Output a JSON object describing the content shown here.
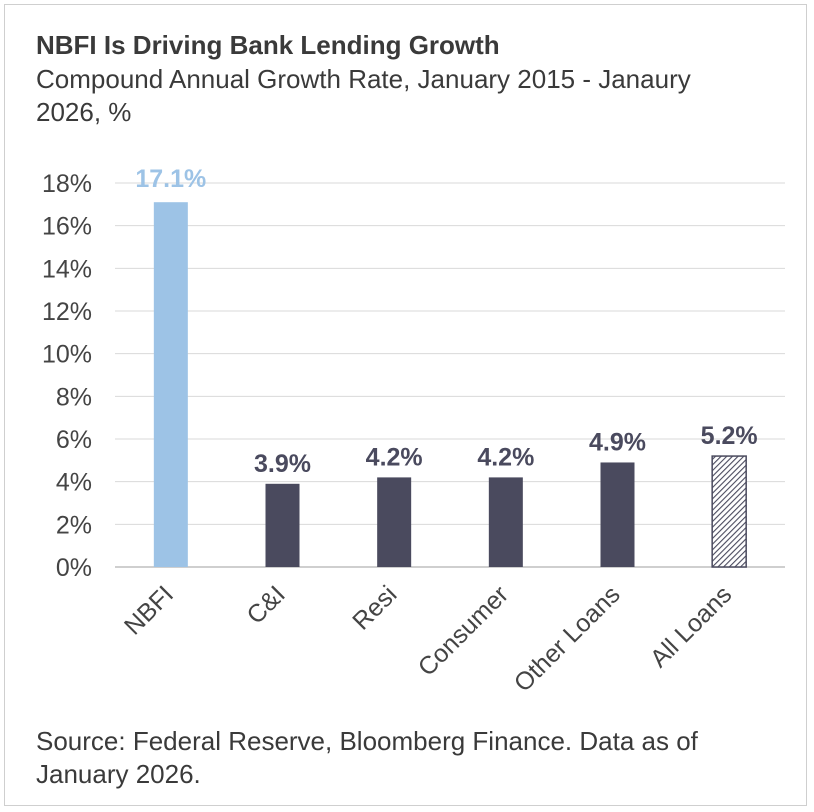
{
  "title": "NBFI Is Driving Bank Lending Growth",
  "subtitle": "Compound Annual Growth Rate, January 2015 - Janaury 2026, %",
  "source": "Source: Federal Reserve, Bloomberg Finance. Data as of January 2026.",
  "colors": {
    "highlight": "#9dc3e6",
    "primary": "#4a4a5e",
    "highlight_label": "#9dc3e6",
    "primary_label": "#4a4a5e",
    "gridline": "#d9d9d9",
    "axis": "#bfbfbf"
  },
  "chart_data": {
    "type": "bar",
    "title": "NBFI Is Driving Bank Lending Growth",
    "subtitle": "Compound Annual Growth Rate, January 2015 - Janaury 2026, %",
    "categories": [
      "NBFI",
      "C&I",
      "Resi",
      "Consumer",
      "Other Loans",
      "All Loans"
    ],
    "values": [
      17.1,
      3.9,
      4.2,
      4.2,
      4.9,
      5.2
    ],
    "data_labels": [
      "17.1%",
      "3.9%",
      "4.2%",
      "4.2%",
      "4.9%",
      "5.2%"
    ],
    "bar_styles": [
      "highlight",
      "solid",
      "solid",
      "solid",
      "solid",
      "hatched"
    ],
    "ylim": [
      0,
      18
    ],
    "yticks": [
      0,
      2,
      4,
      6,
      8,
      10,
      12,
      14,
      16,
      18
    ],
    "ytick_labels": [
      "0%",
      "2%",
      "4%",
      "6%",
      "8%",
      "10%",
      "12%",
      "14%",
      "16%",
      "18%"
    ],
    "grid": true,
    "legend": "none",
    "xlabel": "",
    "ylabel": ""
  }
}
